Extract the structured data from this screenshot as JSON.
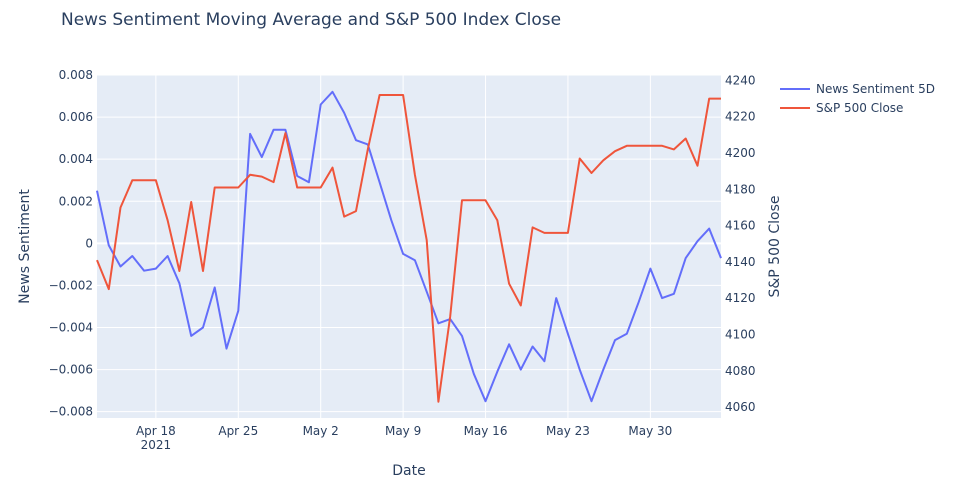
{
  "chart_data": {
    "type": "line",
    "title": "News Sentiment Moving Average and S&P 500 Index Close",
    "xlabel": "Date",
    "ylabel_left": "News Sentiment",
    "ylabel_right": "S&P 500 Close",
    "x_ticks": [
      {
        "label": "Apr 18",
        "sub": "2021",
        "day": 18
      },
      {
        "label": "Apr 25",
        "sub": "",
        "day": 25
      },
      {
        "label": "May 2",
        "sub": "",
        "day": 32
      },
      {
        "label": "May 9",
        "sub": "",
        "day": 39
      },
      {
        "label": "May 16",
        "sub": "",
        "day": 46
      },
      {
        "label": "May 23",
        "sub": "",
        "day": 53
      },
      {
        "label": "May 30",
        "sub": "",
        "day": 60
      }
    ],
    "x_range_days": [
      13,
      66
    ],
    "y_left": {
      "range": [
        -0.0083,
        0.008
      ],
      "ticks": [
        -0.008,
        -0.006,
        -0.004,
        -0.002,
        0,
        0.002,
        0.004,
        0.006,
        0.008
      ],
      "tick_labels": [
        "−0.008",
        "−0.006",
        "−0.004",
        "−0.002",
        "0",
        "0.002",
        "0.004",
        "0.006",
        "0.008"
      ]
    },
    "y_right": {
      "range": [
        4054,
        4243
      ],
      "ticks": [
        4060,
        4080,
        4100,
        4120,
        4140,
        4160,
        4180,
        4200,
        4220,
        4240
      ],
      "tick_labels": [
        "4060",
        "4080",
        "4100",
        "4120",
        "4140",
        "4160",
        "4180",
        "4200",
        "4220",
        "4240"
      ]
    },
    "grid": true,
    "legend_position": "top-right",
    "series": [
      {
        "name": "News Sentiment 5D",
        "axis": "left",
        "color": "#636efa",
        "x": [
          13,
          14,
          15,
          16,
          17,
          18,
          19,
          20,
          21,
          22,
          23,
          24,
          25,
          26,
          27,
          28,
          29,
          30,
          31,
          32,
          33,
          34,
          35,
          36,
          37,
          38,
          39,
          40,
          41,
          42,
          43,
          44,
          45,
          46,
          47,
          48,
          49,
          50,
          51,
          52,
          53,
          54,
          55,
          56,
          57,
          58,
          59,
          60,
          61,
          62,
          63,
          64,
          65,
          66
        ],
        "y": [
          0.0025,
          -0.0001,
          -0.0011,
          -0.0006,
          -0.0013,
          -0.0012,
          -0.0006,
          -0.0019,
          -0.0044,
          -0.004,
          -0.0021,
          -0.005,
          -0.0032,
          0.0052,
          0.0041,
          0.0054,
          0.0054,
          0.0032,
          0.0029,
          0.0066,
          0.0072,
          0.0062,
          0.0049,
          0.0047,
          0.0029,
          0.0011,
          -0.0005,
          -0.0008,
          -0.0023,
          -0.0038,
          -0.0036,
          -0.0044,
          -0.0062,
          -0.0075,
          -0.0061,
          -0.0048,
          -0.006,
          -0.0049,
          -0.0056,
          -0.0026,
          -0.0043,
          -0.006,
          -0.0075,
          -0.006,
          -0.0046,
          -0.0043,
          -0.0028,
          -0.0012,
          -0.0026,
          -0.0024,
          -0.0007,
          0.0001,
          0.0007,
          -0.0007
        ]
      },
      {
        "name": "S&P 500 Close",
        "axis": "right",
        "color": "#ef553b",
        "x": [
          13,
          14,
          15,
          16,
          17,
          18,
          19,
          20,
          21,
          22,
          23,
          24,
          25,
          26,
          27,
          28,
          29,
          30,
          31,
          32,
          33,
          34,
          35,
          36,
          37,
          38,
          39,
          40,
          41,
          42,
          43,
          44,
          45,
          46,
          47,
          48,
          49,
          50,
          51,
          52,
          53,
          54,
          55,
          56,
          57,
          58,
          59,
          60,
          61,
          62,
          63,
          64,
          65,
          66
        ],
        "y": [
          4141,
          4125,
          4170,
          4185,
          4185,
          4185,
          4163,
          4135,
          4173,
          4135,
          4181,
          4181,
          4181,
          4188,
          4187,
          4184,
          4211,
          4181,
          4181,
          4181,
          4192,
          4165,
          4168,
          4202,
          4232,
          4232,
          4232,
          4188,
          4152,
          4063,
          4110,
          4174,
          4174,
          4174,
          4163,
          4128,
          4116,
          4159,
          4156,
          4156,
          4156,
          4197,
          4189,
          4196,
          4201,
          4204,
          4204,
          4204,
          4204,
          4202,
          4208,
          4193,
          4230,
          4230
        ]
      }
    ]
  }
}
